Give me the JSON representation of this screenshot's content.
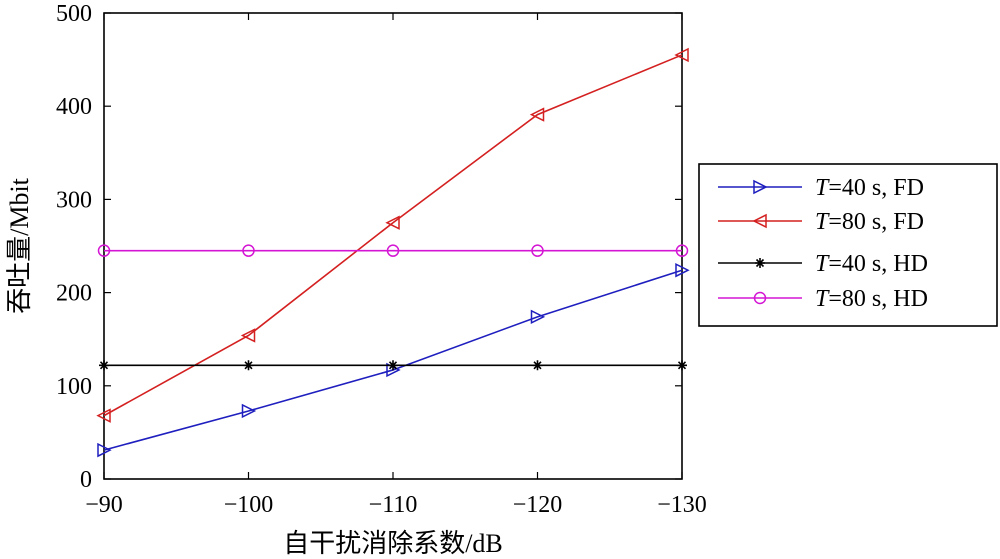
{
  "chart_data": {
    "type": "line",
    "title": "",
    "xlabel": "自干扰消除系数/dB",
    "ylabel": "吞吐量/Mbit",
    "x": [
      -90,
      -100,
      -110,
      -120,
      -130
    ],
    "x_tick_labels": [
      "−90",
      "−100",
      "−110",
      "−120",
      "−130"
    ],
    "xlim": [
      -90,
      -130
    ],
    "y_ticks": [
      0,
      100,
      200,
      300,
      400,
      500
    ],
    "y_tick_labels": [
      "0",
      "100",
      "200",
      "300",
      "400",
      "500"
    ],
    "ylim": [
      0,
      500
    ],
    "grid": false,
    "legend_position": "right",
    "series": [
      {
        "name": "T=40 s, FD",
        "var": "T",
        "rest": "=40 s, FD",
        "color": "#1f1fbf",
        "marker": "triangle-right",
        "values": [
          31,
          73,
          117,
          174,
          224
        ]
      },
      {
        "name": "T=80 s, FD",
        "var": "T",
        "rest": "=80 s, FD",
        "color": "#d42020",
        "marker": "triangle-left",
        "values": [
          68,
          154,
          275,
          391,
          455
        ]
      },
      {
        "name": "T=40 s, HD",
        "var": "T",
        "rest": "=40 s, HD",
        "color": "#000000",
        "marker": "asterisk",
        "values": [
          122,
          122,
          122,
          122,
          122
        ]
      },
      {
        "name": "T=80 s, HD",
        "var": "T",
        "rest": "=80 s, HD",
        "color": "#d416d4",
        "marker": "circle",
        "values": [
          245,
          245,
          245,
          245,
          245
        ]
      }
    ]
  }
}
